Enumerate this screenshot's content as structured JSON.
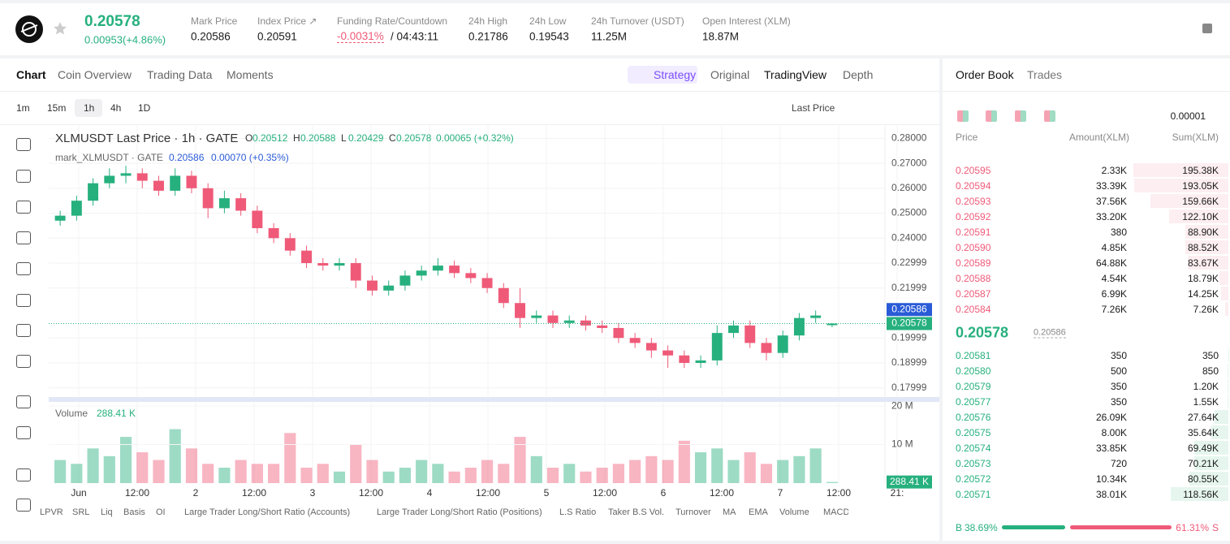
{
  "header": {
    "price": "0.20578",
    "change": "0.00953(+4.86%)",
    "stats": [
      {
        "label": "Mark Price",
        "value": "0.20586"
      },
      {
        "label": "Index Price ↗",
        "value": "0.20591"
      },
      {
        "label": "Funding Rate/Countdown",
        "value": "-0.0031%",
        "extra": "/ 04:43:11"
      },
      {
        "label": "24h High",
        "value": "0.21786"
      },
      {
        "label": "24h Low",
        "value": "0.19543"
      },
      {
        "label": "24h Turnover (USDT)",
        "value": "11.25M"
      },
      {
        "label": "Open Interest (XLM)",
        "value": "18.87M"
      }
    ]
  },
  "tabs": [
    "Chart",
    "Coin Overview",
    "Trading Data",
    "Moments"
  ],
  "views": [
    "Strategy",
    "Original",
    "TradingView",
    "Depth"
  ],
  "intervals": [
    "1m",
    "15m",
    "1h",
    "4h",
    "1D"
  ],
  "price_source": "Last Price",
  "chart_data": {
    "type": "candlestick",
    "title": "XLMUSDT Last Price · 1h · GATE",
    "ohlc": [
      {
        "key": "O",
        "value": "0.20512"
      },
      {
        "key": "H",
        "value": "0.20588"
      },
      {
        "key": "L",
        "value": "0.20429"
      },
      {
        "key": "C",
        "value": "0.20578"
      }
    ],
    "change": "0.00065 (+0.32%)",
    "mark_title": "mark_XLMUSDT · GATE",
    "mark_value": "0.20586",
    "mark_change": "0.00070 (+0.35%)",
    "colors": {
      "up": "#26b07e",
      "down": "#ef5a78",
      "mark": "#2a5bd7"
    },
    "candles": [
      [
        0.247,
        0.251,
        0.245,
        0.249
      ],
      [
        0.249,
        0.257,
        0.247,
        0.255
      ],
      [
        0.255,
        0.264,
        0.253,
        0.262
      ],
      [
        0.262,
        0.268,
        0.26,
        0.265
      ],
      [
        0.265,
        0.269,
        0.262,
        0.266
      ],
      [
        0.266,
        0.268,
        0.26,
        0.263
      ],
      [
        0.263,
        0.265,
        0.257,
        0.259
      ],
      [
        0.259,
        0.268,
        0.257,
        0.265
      ],
      [
        0.265,
        0.267,
        0.258,
        0.26
      ],
      [
        0.26,
        0.262,
        0.248,
        0.252
      ],
      [
        0.252,
        0.259,
        0.25,
        0.256
      ],
      [
        0.256,
        0.258,
        0.249,
        0.251
      ],
      [
        0.251,
        0.253,
        0.242,
        0.244
      ],
      [
        0.244,
        0.246,
        0.238,
        0.24
      ],
      [
        0.24,
        0.242,
        0.233,
        0.235
      ],
      [
        0.235,
        0.237,
        0.228,
        0.23
      ],
      [
        0.23,
        0.232,
        0.227,
        0.229
      ],
      [
        0.229,
        0.232,
        0.227,
        0.23
      ],
      [
        0.23,
        0.232,
        0.22,
        0.223
      ],
      [
        0.223,
        0.225,
        0.217,
        0.219
      ],
      [
        0.219,
        0.223,
        0.217,
        0.221
      ],
      [
        0.221,
        0.227,
        0.219,
        0.225
      ],
      [
        0.225,
        0.229,
        0.223,
        0.227
      ],
      [
        0.227,
        0.232,
        0.225,
        0.229
      ],
      [
        0.229,
        0.231,
        0.224,
        0.226
      ],
      [
        0.226,
        0.228,
        0.222,
        0.224
      ],
      [
        0.224,
        0.226,
        0.218,
        0.22
      ],
      [
        0.22,
        0.222,
        0.212,
        0.214
      ],
      [
        0.214,
        0.22,
        0.204,
        0.208
      ],
      [
        0.208,
        0.211,
        0.206,
        0.209
      ],
      [
        0.209,
        0.211,
        0.204,
        0.206
      ],
      [
        0.206,
        0.209,
        0.204,
        0.207
      ],
      [
        0.207,
        0.209,
        0.203,
        0.205
      ],
      [
        0.205,
        0.207,
        0.202,
        0.204
      ],
      [
        0.204,
        0.206,
        0.198,
        0.2
      ],
      [
        0.2,
        0.202,
        0.196,
        0.198
      ],
      [
        0.198,
        0.2,
        0.192,
        0.195
      ],
      [
        0.195,
        0.197,
        0.188,
        0.193
      ],
      [
        0.193,
        0.195,
        0.188,
        0.19
      ],
      [
        0.19,
        0.193,
        0.188,
        0.191
      ],
      [
        0.191,
        0.205,
        0.189,
        0.202
      ],
      [
        0.202,
        0.207,
        0.2,
        0.205
      ],
      [
        0.205,
        0.207,
        0.196,
        0.198
      ],
      [
        0.198,
        0.2,
        0.191,
        0.194
      ],
      [
        0.194,
        0.203,
        0.192,
        0.201
      ],
      [
        0.201,
        0.21,
        0.199,
        0.208
      ],
      [
        0.208,
        0.211,
        0.206,
        0.209
      ],
      [
        0.20512,
        0.20588,
        0.20429,
        0.20578
      ]
    ],
    "ylim": [
      0.176,
      0.285
    ],
    "yticks": [
      {
        "value": 0.28,
        "label": "0.28000"
      },
      {
        "value": 0.27,
        "label": "0.27000"
      },
      {
        "value": 0.26,
        "label": "0.26000"
      },
      {
        "value": 0.25,
        "label": "0.25000"
      },
      {
        "value": 0.24,
        "label": "0.24000"
      },
      {
        "value": 0.22999,
        "label": "0.22999"
      },
      {
        "value": 0.21999,
        "label": "0.21999"
      },
      {
        "value": 0.19999,
        "label": "0.19999"
      },
      {
        "value": 0.18999,
        "label": "0.18999"
      },
      {
        "value": 0.17999,
        "label": "0.17999"
      }
    ],
    "mark_price": {
      "value": 0.20586,
      "label": "0.20586"
    },
    "last_price": {
      "value": 0.20578,
      "label": "0.20578"
    },
    "x_labels": [
      "Jun",
      "12:00",
      "2",
      "12:00",
      "3",
      "12:00",
      "4",
      "12:00",
      "5",
      "12:00",
      "6",
      "12:00",
      "7",
      "12:00",
      "21:"
    ],
    "volume": {
      "title": "Volume",
      "last": {
        "value": 0.28841,
        "label": "288.41 K"
      },
      "ylim": [
        0,
        21.5
      ],
      "yticks": [
        {
          "value": 20,
          "label": "20 M"
        },
        {
          "value": 10,
          "label": "10 M"
        }
      ],
      "values": [
        6,
        5,
        9,
        7,
        12,
        8,
        6,
        14,
        9,
        5,
        4,
        6,
        5,
        5,
        13,
        4,
        5,
        3,
        10,
        6,
        3,
        4,
        6,
        5,
        3,
        4,
        6,
        5,
        12,
        7,
        4,
        5,
        3,
        4,
        5,
        6,
        7,
        6,
        11,
        8,
        9,
        6,
        8,
        5,
        6,
        7,
        9,
        0.28841
      ]
    }
  },
  "indicators": [
    "LPVR",
    "SRL",
    "Liq",
    "Basis",
    "OI",
    "Large Trader Long/Short Ratio (Accounts)",
    "Large Trader Long/Short Ratio (Positions)",
    "L.S Ratio",
    "Taker B.S Vol.",
    "Turnover",
    "MA",
    "EMA",
    "Volume",
    "MACD"
  ],
  "order_book": {
    "tabs": [
      "Order Book",
      "Trades"
    ],
    "precision": "0.00001",
    "columns": [
      "Price",
      "Amount(XLM)",
      "Sum(XLM)"
    ],
    "asks": [
      {
        "price": "0.20595",
        "amount": "2.33K",
        "sum": {
          "value": 195380,
          "label": "195.38K"
        }
      },
      {
        "price": "0.20594",
        "amount": "33.39K",
        "sum": {
          "value": 193050,
          "label": "193.05K"
        }
      },
      {
        "price": "0.20593",
        "amount": "37.56K",
        "sum": {
          "value": 159660,
          "label": "159.66K"
        }
      },
      {
        "price": "0.20592",
        "amount": "33.20K",
        "sum": {
          "value": 122100,
          "label": "122.10K"
        }
      },
      {
        "price": "0.20591",
        "amount": "380",
        "sum": {
          "value": 88900,
          "label": "88.90K"
        }
      },
      {
        "price": "0.20590",
        "amount": "4.85K",
        "sum": {
          "value": 88520,
          "label": "88.52K"
        }
      },
      {
        "price": "0.20589",
        "amount": "64.88K",
        "sum": {
          "value": 83670,
          "label": "83.67K"
        }
      },
      {
        "price": "0.20588",
        "amount": "4.54K",
        "sum": {
          "value": 18790,
          "label": "18.79K"
        }
      },
      {
        "price": "0.20587",
        "amount": "6.99K",
        "sum": {
          "value": 14250,
          "label": "14.25K"
        }
      },
      {
        "price": "0.20584",
        "amount": "7.26K",
        "sum": {
          "value": 7260,
          "label": "7.26K"
        }
      }
    ],
    "last": "0.20578",
    "mark": "0.20586",
    "bids": [
      {
        "price": "0.20581",
        "amount": "350",
        "sum": 350
      },
      {
        "price": "0.20580",
        "amount": "500",
        "sum": 850
      },
      {
        "price": "0.20579",
        "amount": "350",
        "sum": {
          "value": 1200,
          "label": "1.20K"
        }
      },
      {
        "price": "0.20577",
        "amount": "350",
        "sum": {
          "value": 1550,
          "label": "1.55K"
        }
      },
      {
        "price": "0.20576",
        "amount": "26.09K",
        "sum": {
          "value": 27640,
          "label": "27.64K"
        }
      },
      {
        "price": "0.20575",
        "amount": "8.00K",
        "sum": {
          "value": 35640,
          "label": "35.64K"
        }
      },
      {
        "price": "0.20574",
        "amount": "33.85K",
        "sum": {
          "value": 69490,
          "label": "69.49K"
        }
      },
      {
        "price": "0.20573",
        "amount": "720",
        "sum": {
          "value": 70210,
          "label": "70.21K"
        }
      },
      {
        "price": "0.20572",
        "amount": "10.34K",
        "sum": {
          "value": 80550,
          "label": "80.55K"
        }
      },
      {
        "price": "0.20571",
        "amount": "38.01K",
        "sum": {
          "value": 118560,
          "label": "118.56K"
        }
      }
    ],
    "ratio": {
      "buy_key": "B",
      "sell_key": "S",
      "buy": {
        "value": 38.69,
        "label": "38.69%"
      },
      "sell": {
        "value": 61.31,
        "label": "61.31%"
      }
    }
  }
}
